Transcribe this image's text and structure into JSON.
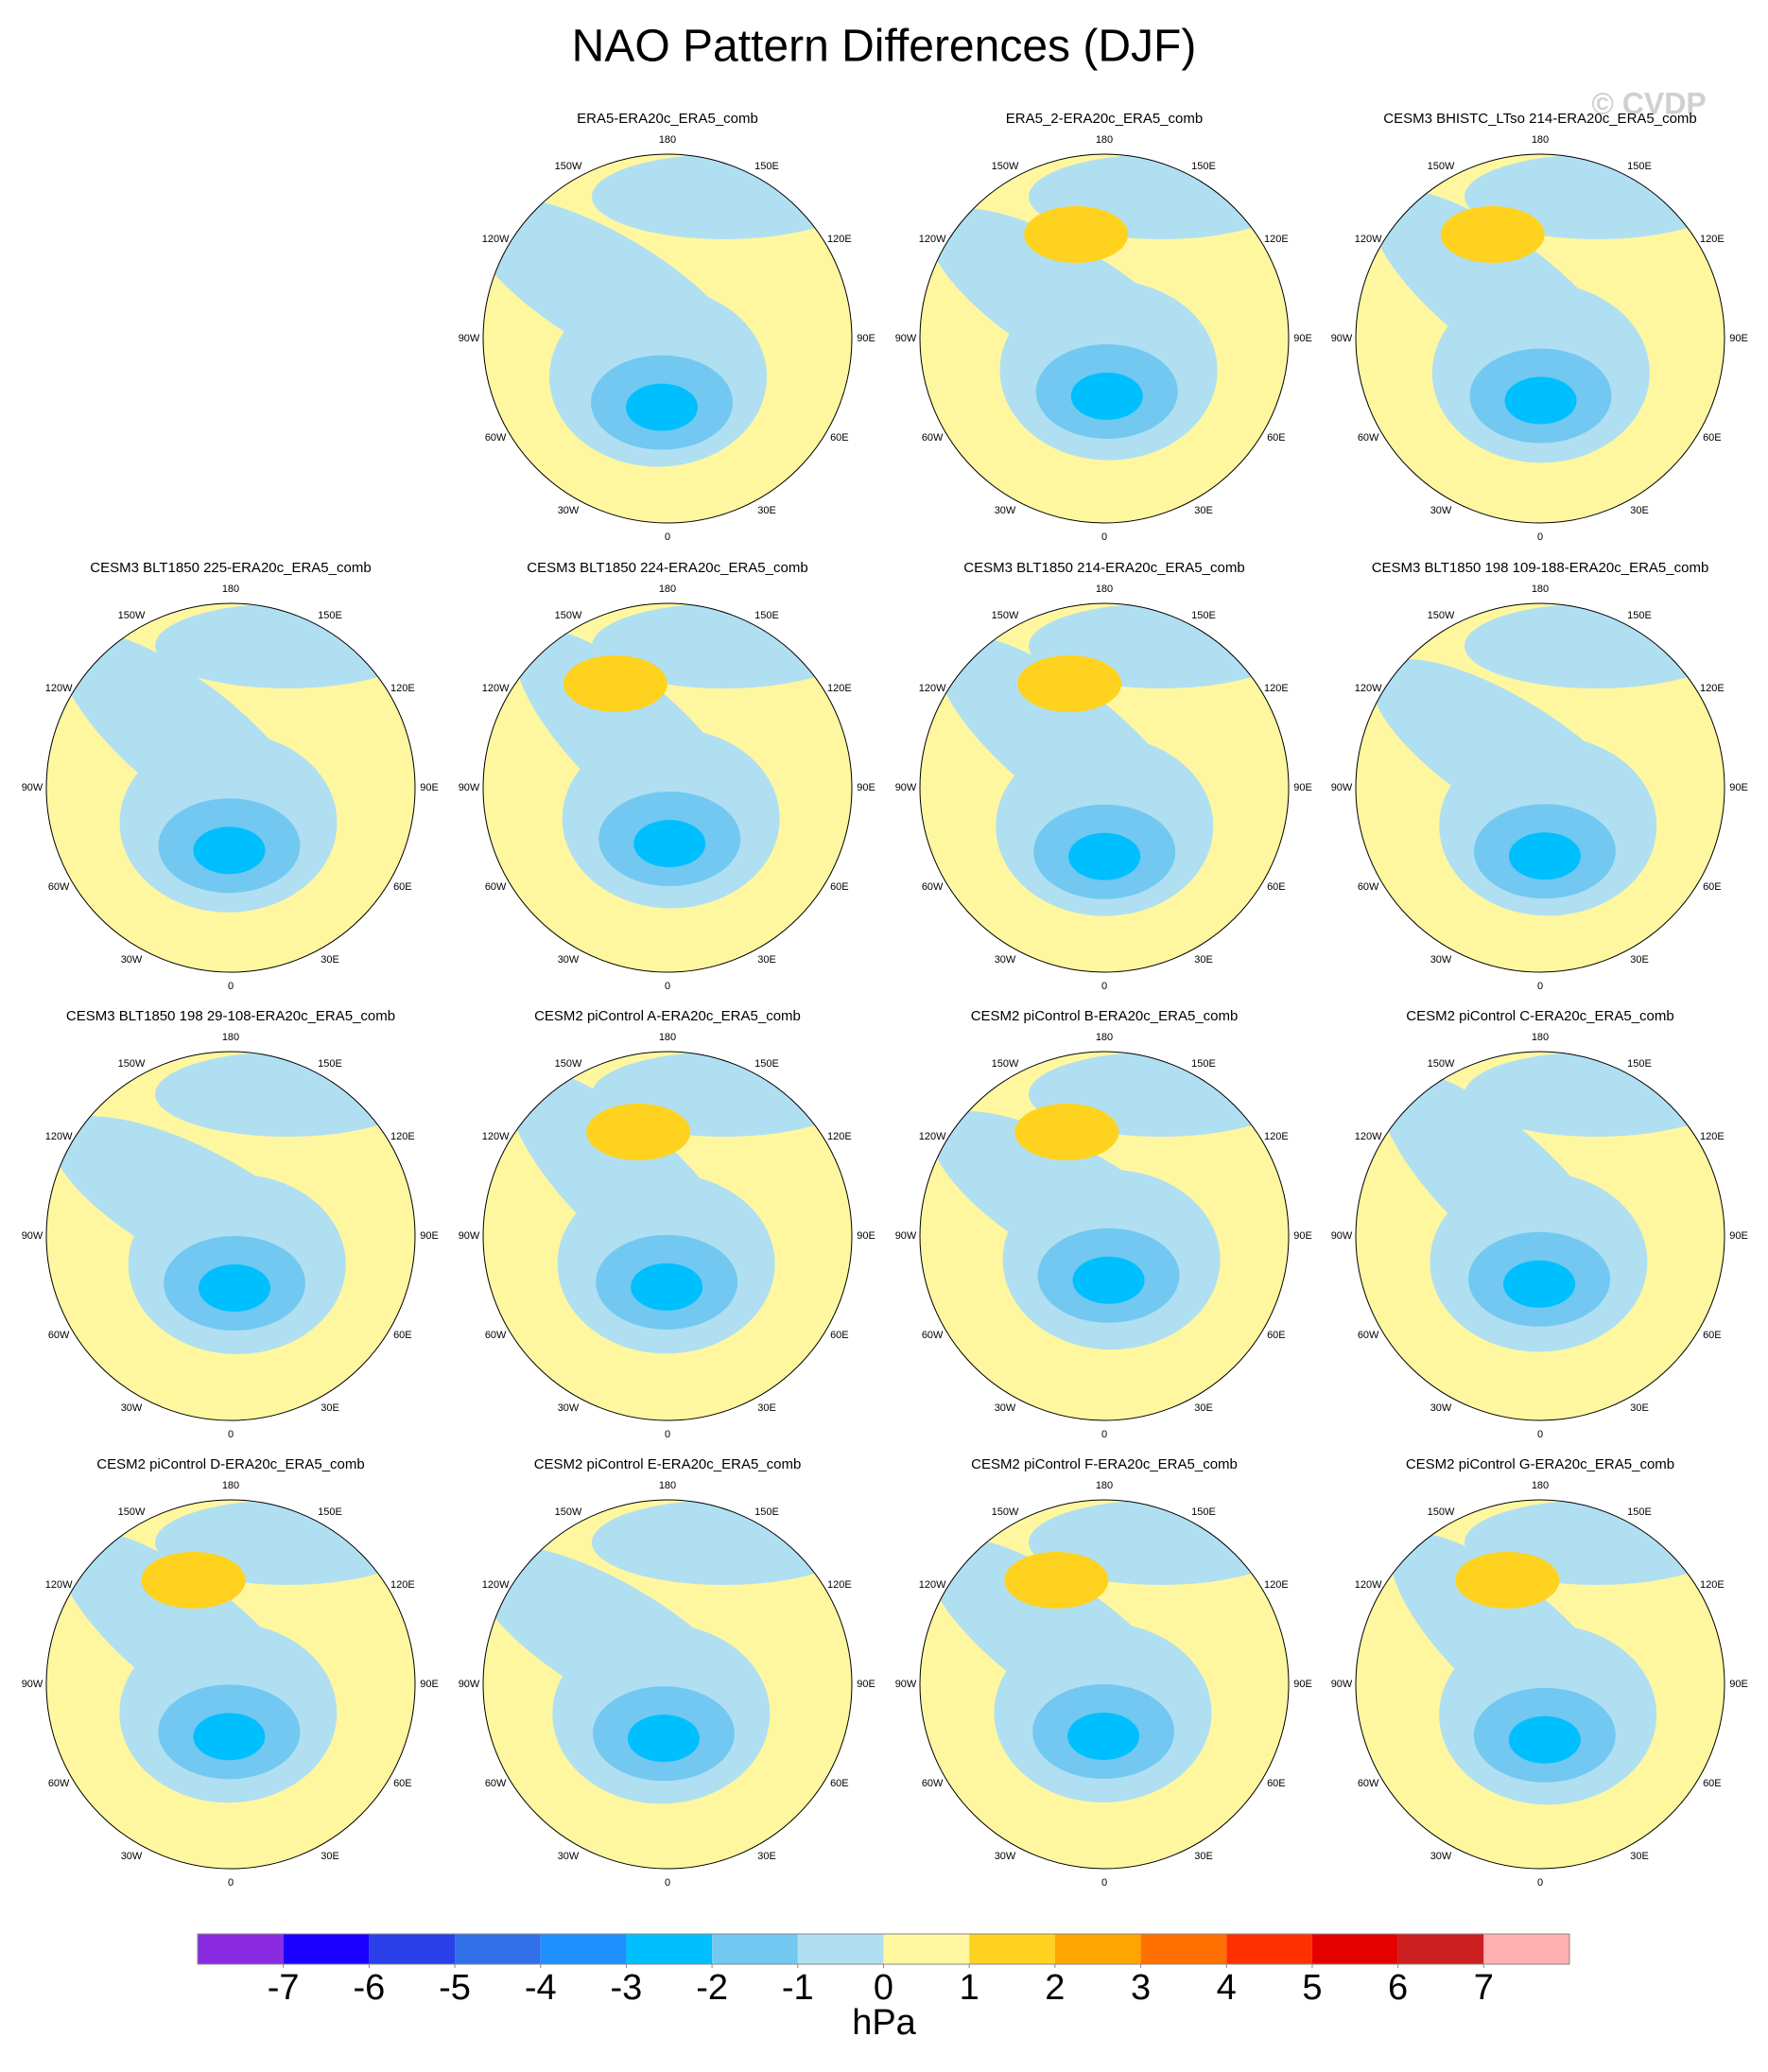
{
  "title": "NAO Pattern Differences (DJF)",
  "watermark": "© CVDP",
  "panels": [
    {
      "title": "ERA5-ERA20c_ERA5_comb"
    },
    {
      "title": "ERA5_2-ERA20c_ERA5_comb"
    },
    {
      "title": "CESM3 BHISTC_LTso 214-ERA20c_ERA5_comb"
    },
    {
      "title": "CESM3 BLT1850 225-ERA20c_ERA5_comb"
    },
    {
      "title": "CESM3 BLT1850 224-ERA20c_ERA5_comb"
    },
    {
      "title": "CESM3 BLT1850 214-ERA20c_ERA5_comb"
    },
    {
      "title": "CESM3 BLT1850 198 109-188-ERA20c_ERA5_comb"
    },
    {
      "title": "CESM3 BLT1850 198 29-108-ERA20c_ERA5_comb"
    },
    {
      "title": "CESM2 piControl A-ERA20c_ERA5_comb"
    },
    {
      "title": "CESM2 piControl B-ERA20c_ERA5_comb"
    },
    {
      "title": "CESM2 piControl C-ERA20c_ERA5_comb"
    },
    {
      "title": "CESM2 piControl D-ERA20c_ERA5_comb"
    },
    {
      "title": "CESM2 piControl E-ERA20c_ERA5_comb"
    },
    {
      "title": "CESM2 piControl F-ERA20c_ERA5_comb"
    },
    {
      "title": "CESM2 piControl G-ERA20c_ERA5_comb"
    }
  ],
  "lon_labels": [
    "180",
    "150E",
    "120E",
    "90E",
    "60E",
    "30E",
    "0",
    "30W",
    "60W",
    "90W",
    "120W",
    "150W"
  ],
  "colorbar": {
    "label": "hPa",
    "ticks": [
      -7,
      -6,
      -5,
      -4,
      -3,
      -2,
      -1,
      0,
      1,
      2,
      3,
      4,
      5,
      6,
      7
    ],
    "colors": [
      "#8a2be2",
      "#1a00ff",
      "#2a3fe8",
      "#3070e8",
      "#1e90ff",
      "#00bfff",
      "#72c8f0",
      "#b0dff2",
      "#fff7a0",
      "#ffd21f",
      "#ffa500",
      "#ff7000",
      "#ff3000",
      "#e50000",
      "#cc1f1f",
      "#ffb0b0"
    ]
  }
}
